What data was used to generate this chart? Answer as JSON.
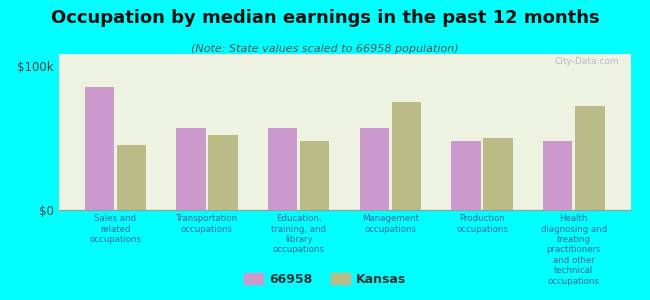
{
  "title": "Occupation by median earnings in the past 12 months",
  "subtitle": "(Note: State values scaled to 66958 population)",
  "categories": [
    "Sales and\nrelated\noccupations",
    "Transportation\noccupations",
    "Education,\ntraining, and\nlibrary\noccupations",
    "Management\noccupations",
    "Production\noccupations",
    "Health\ndiagnosing and\ntreating\npractitioners\nand other\ntechnical\noccupations"
  ],
  "values_66958": [
    85000,
    57000,
    57000,
    57000,
    48000,
    48000
  ],
  "values_kansas": [
    45000,
    52000,
    48000,
    75000,
    50000,
    72000
  ],
  "color_66958": "#cc99cc",
  "color_kansas": "#bbbb88",
  "background_color": "#00ffff",
  "plot_bg_color": "#eef2e0",
  "ylim": [
    0,
    108000
  ],
  "yticks": [
    0,
    100000
  ],
  "ytick_labels": [
    "$0",
    "$100k"
  ],
  "legend_label_1": "66958",
  "legend_label_2": "Kansas",
  "watermark": "City-Data.com"
}
